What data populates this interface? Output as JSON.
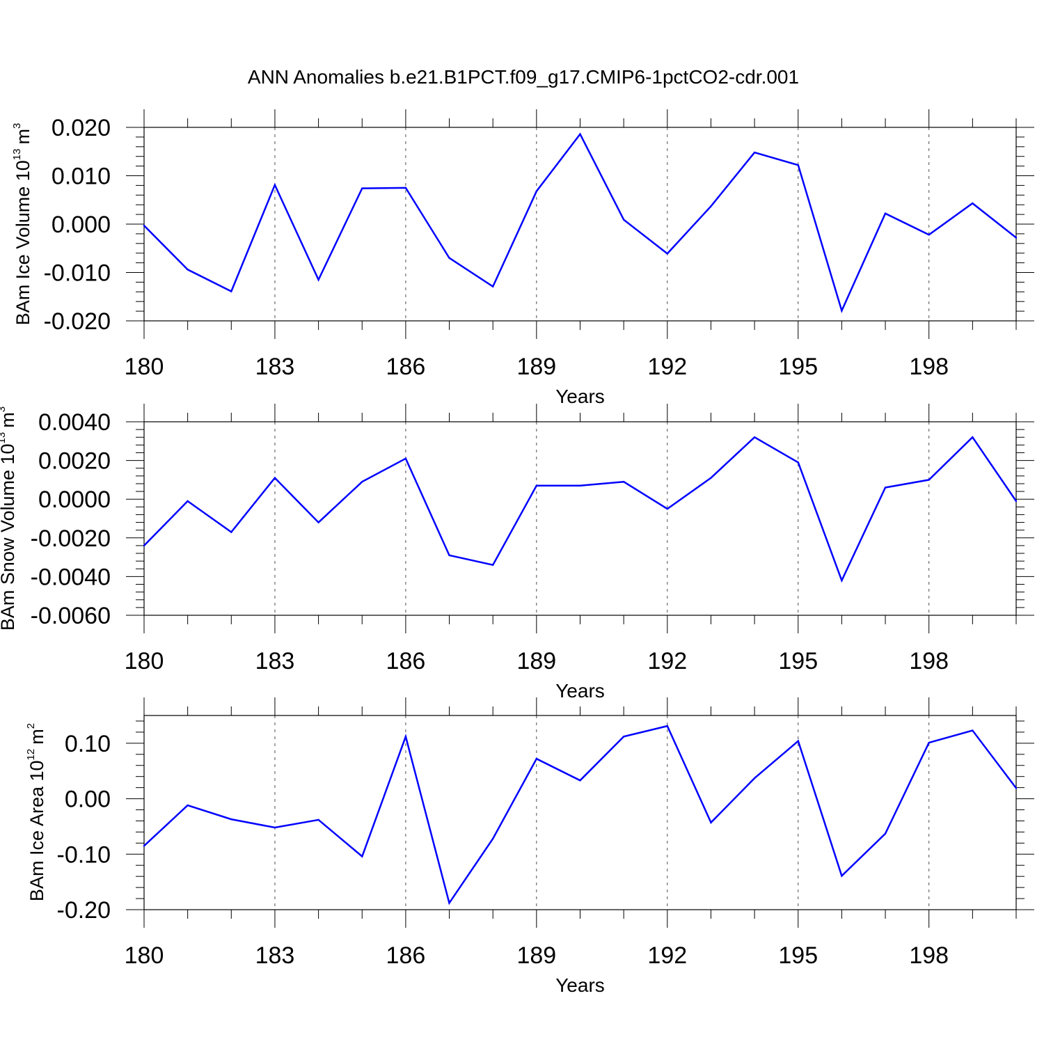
{
  "title": "ANN Anomalies b.e21.B1PCT.f09_g17.CMIP6-1pctCO2-cdr.001",
  "colors": {
    "line": "#0000ff",
    "axis": "#000000",
    "grid": "#000000"
  },
  "chart_data": [
    {
      "type": "line",
      "ylabel": "BAm Ice Volume 10",
      "ylabel_exp": "13",
      "ylabel_unit": "m",
      "ylabel_unit_exp": "3",
      "xlabel": "Years",
      "xlim": [
        180,
        200
      ],
      "ylim": [
        -0.02,
        0.02
      ],
      "xticks": [
        180,
        183,
        186,
        189,
        192,
        195,
        198
      ],
      "xtick_labels": [
        "180",
        "183",
        "186",
        "189",
        "192",
        "195",
        "198"
      ],
      "yticks": [
        0.02,
        0.01,
        0.0,
        -0.01,
        -0.02
      ],
      "ytick_labels": [
        "0.020",
        "0.010",
        "0.000",
        "-0.010",
        "-0.020"
      ],
      "grid": "vertical dashed at major x ticks",
      "x": [
        180,
        181,
        182,
        183,
        184,
        185,
        186,
        187,
        188,
        189,
        190,
        191,
        192,
        193,
        194,
        195,
        196,
        197,
        198,
        199,
        200
      ],
      "values": [
        -0.0003,
        -0.0094,
        -0.0139,
        0.0081,
        -0.0115,
        0.0074,
        0.0075,
        -0.007,
        -0.0129,
        0.0068,
        0.0186,
        0.0009,
        -0.0061,
        0.0037,
        0.0148,
        0.0122,
        -0.0179,
        0.0022,
        -0.0022,
        0.0043,
        -0.0028
      ]
    },
    {
      "type": "line",
      "ylabel": "BAm Snow Volume 10",
      "ylabel_exp": "13",
      "ylabel_unit": "m",
      "ylabel_unit_exp": "3",
      "xlabel": "Years",
      "xlim": [
        180,
        200
      ],
      "ylim": [
        -0.006,
        0.004
      ],
      "xticks": [
        180,
        183,
        186,
        189,
        192,
        195,
        198
      ],
      "xtick_labels": [
        "180",
        "183",
        "186",
        "189",
        "192",
        "195",
        "198"
      ],
      "yticks": [
        0.004,
        0.002,
        0.0,
        -0.002,
        -0.004,
        -0.006
      ],
      "ytick_labels": [
        "0.0040",
        "0.0020",
        "0.0000",
        "-0.0020",
        "-0.0040",
        "-0.0060"
      ],
      "grid": "vertical dashed at major x ticks",
      "x": [
        180,
        181,
        182,
        183,
        184,
        185,
        186,
        187,
        188,
        189,
        190,
        191,
        192,
        193,
        194,
        195,
        196,
        197,
        198,
        199,
        200
      ],
      "values": [
        -0.0024,
        -0.0001,
        -0.0017,
        0.0011,
        -0.0012,
        0.0009,
        0.0021,
        -0.0029,
        -0.0034,
        0.0007,
        0.0007,
        0.0009,
        -0.0005,
        0.0011,
        0.0032,
        0.0019,
        -0.0042,
        0.0006,
        0.001,
        0.0032,
        -0.0001
      ]
    },
    {
      "type": "line",
      "ylabel": "BAm Ice Area 10",
      "ylabel_exp": "12",
      "ylabel_unit": "m",
      "ylabel_unit_exp": "2",
      "xlabel": "Years",
      "xlim": [
        180,
        200
      ],
      "ylim": [
        -0.2,
        0.15
      ],
      "xticks": [
        180,
        183,
        186,
        189,
        192,
        195,
        198
      ],
      "xtick_labels": [
        "180",
        "183",
        "186",
        "189",
        "192",
        "195",
        "198"
      ],
      "yticks": [
        0.1,
        0.0,
        -0.1,
        -0.2
      ],
      "ytick_labels": [
        "0.10",
        "0.00",
        "-0.10",
        "-0.20"
      ],
      "grid": "vertical dashed at major x ticks",
      "x": [
        180,
        181,
        182,
        183,
        184,
        185,
        186,
        187,
        188,
        189,
        190,
        191,
        192,
        193,
        194,
        195,
        196,
        197,
        198,
        199,
        200
      ],
      "values": [
        -0.085,
        -0.012,
        -0.037,
        -0.052,
        -0.038,
        -0.104,
        0.112,
        -0.188,
        -0.072,
        0.072,
        0.033,
        0.112,
        0.131,
        -0.043,
        0.037,
        0.104,
        -0.139,
        -0.063,
        0.101,
        0.123,
        0.019
      ]
    }
  ]
}
